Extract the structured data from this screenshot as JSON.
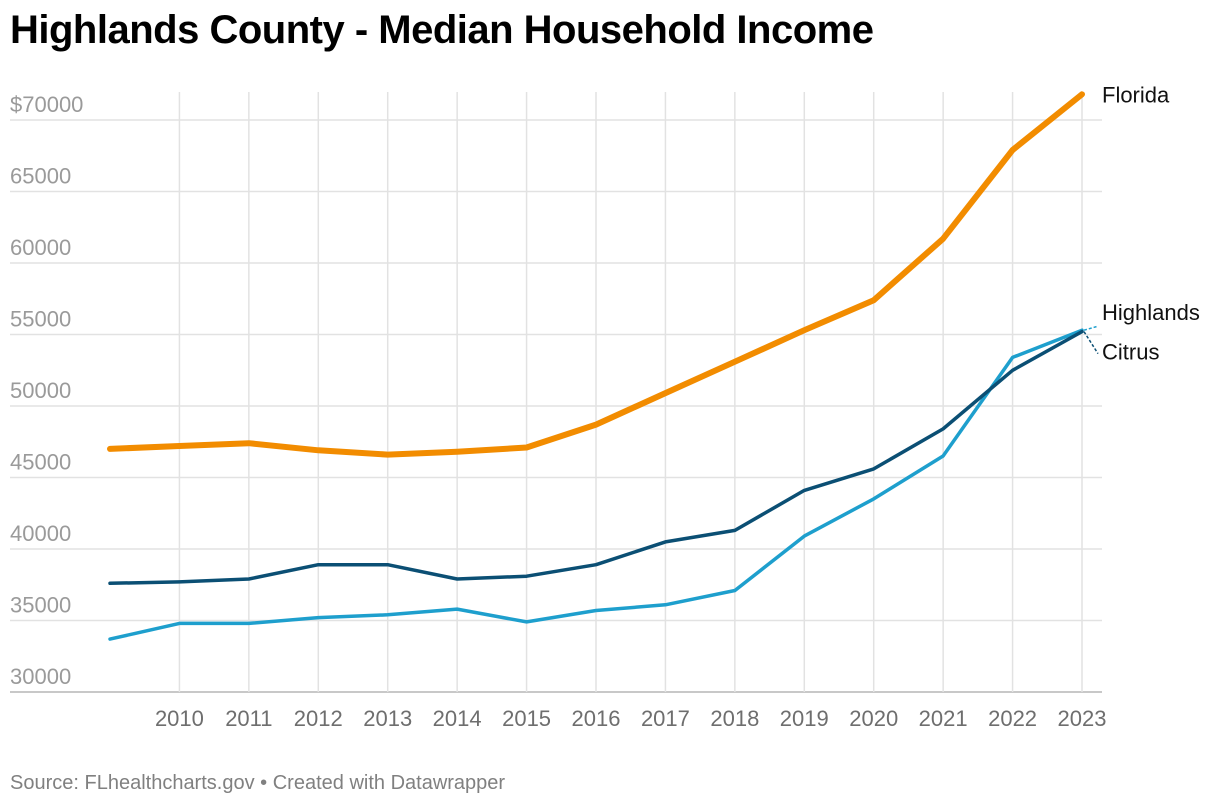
{
  "title": "Highlands County - Median Household Income",
  "footer": {
    "source_label": "Source: FLhealthcharts.gov",
    "separator": "•",
    "credit": "Created with Datawrapper"
  },
  "chart_data": {
    "type": "line",
    "title": "Highlands County - Median Household Income",
    "xlabel": "",
    "ylabel": "",
    "x": [
      2009,
      2010,
      2011,
      2012,
      2013,
      2014,
      2015,
      2016,
      2017,
      2018,
      2019,
      2020,
      2021,
      2022,
      2023
    ],
    "x_tick_labels": [
      "2010",
      "2011",
      "2012",
      "2013",
      "2014",
      "2015",
      "2016",
      "2017",
      "2018",
      "2019",
      "2020",
      "2021",
      "2022",
      "2023"
    ],
    "y_ticks": [
      30000,
      35000,
      40000,
      45000,
      50000,
      55000,
      60000,
      65000,
      70000
    ],
    "y_tick_labels": [
      "30000",
      "35000",
      "40000",
      "45000",
      "50000",
      "55000",
      "60000",
      "65000",
      "$70000"
    ],
    "ylim": [
      28000,
      72000
    ],
    "grid": true,
    "series": [
      {
        "name": "Florida",
        "color": "#f28c00",
        "stroke_role": "thick",
        "values": [
          47000,
          47200,
          47400,
          46900,
          46600,
          46800,
          47100,
          48700,
          50900,
          53100,
          55300,
          57400,
          61700,
          67900,
          71800
        ]
      },
      {
        "name": "Highlands",
        "color": "#1e9fcd",
        "stroke_role": "normal",
        "values": [
          33700,
          34800,
          34800,
          35200,
          35400,
          35800,
          34900,
          35700,
          36100,
          37100,
          40900,
          43500,
          46500,
          53400,
          55300
        ]
      },
      {
        "name": "Citrus",
        "color": "#0b4f74",
        "stroke_role": "normal",
        "values": [
          37600,
          37700,
          37900,
          38900,
          38900,
          37900,
          38100,
          38900,
          40500,
          41300,
          44100,
          45600,
          48400,
          52500,
          55200
        ]
      }
    ]
  }
}
